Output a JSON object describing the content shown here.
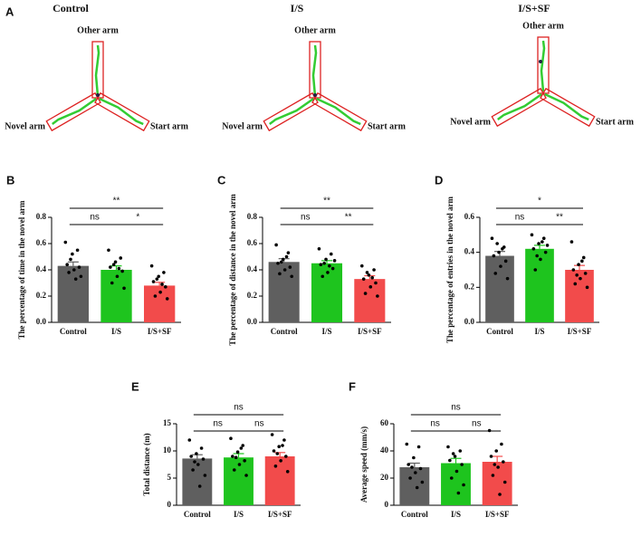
{
  "panel_a": {
    "label": "A",
    "mazes": [
      {
        "title": "Control",
        "other": "Other arm",
        "novel": "Novel arm",
        "start": "Start arm"
      },
      {
        "title": "I/S",
        "other": "Other arm",
        "novel": "Novel arm",
        "start": "Start arm"
      },
      {
        "title": "I/S+SF",
        "other": "Other arm",
        "novel": "Novel arm",
        "start": "Start arm"
      }
    ]
  },
  "chart_data": [
    {
      "type": "bar",
      "panel": "B",
      "y_label": "The percentage of time in the novel arm",
      "categories": [
        "Control",
        "I/S",
        "I/S+SF"
      ],
      "colors": [
        "#5f5f5f",
        "#1ec41e",
        "#f24b4b"
      ],
      "values": [
        0.43,
        0.4,
        0.28
      ],
      "errors": [
        0.03,
        0.03,
        0.025
      ],
      "points": [
        [
          0.61,
          0.55,
          0.52,
          0.44,
          0.42,
          0.4,
          0.38,
          0.35,
          0.33,
          0.48
        ],
        [
          0.55,
          0.49,
          0.46,
          0.42,
          0.39,
          0.35,
          0.3,
          0.26,
          0.41,
          0.44
        ],
        [
          0.43,
          0.38,
          0.35,
          0.31,
          0.27,
          0.23,
          0.2,
          0.18,
          0.29,
          0.33
        ]
      ],
      "ylim": [
        0,
        0.8
      ],
      "yticks": [
        {
          "value": 0,
          "label": "0.0"
        },
        0.2,
        0.4,
        0.6,
        0.8
      ],
      "annotations": [
        {
          "text": "**",
          "between": [
            "Control",
            "I/S+SF"
          ]
        },
        {
          "text": "ns",
          "between": [
            "Control",
            "I/S"
          ]
        },
        {
          "text": "*",
          "between": [
            "I/S",
            "I/S+SF"
          ]
        }
      ]
    },
    {
      "type": "bar",
      "panel": "C",
      "y_label": "The percentage of distance in the novel arm",
      "categories": [
        "Control",
        "I/S",
        "I/S+SF"
      ],
      "colors": [
        "#5f5f5f",
        "#1ec41e",
        "#f24b4b"
      ],
      "values": [
        0.46,
        0.45,
        0.33
      ],
      "errors": [
        0.025,
        0.02,
        0.025
      ],
      "points": [
        [
          0.59,
          0.53,
          0.48,
          0.45,
          0.42,
          0.4,
          0.37,
          0.35,
          0.5,
          0.46
        ],
        [
          0.56,
          0.52,
          0.48,
          0.44,
          0.41,
          0.38,
          0.35,
          0.47,
          0.43,
          0.45
        ],
        [
          0.43,
          0.4,
          0.36,
          0.33,
          0.3,
          0.27,
          0.22,
          0.2,
          0.34,
          0.38
        ]
      ],
      "ylim": [
        0,
        0.8
      ],
      "yticks": [
        {
          "value": 0,
          "label": "0.0"
        },
        0.2,
        0.4,
        0.6,
        0.8
      ],
      "annotations": [
        {
          "text": "**",
          "between": [
            "Control",
            "I/S+SF"
          ]
        },
        {
          "text": "ns",
          "between": [
            "Control",
            "I/S"
          ]
        },
        {
          "text": "**",
          "between": [
            "I/S",
            "I/S+SF"
          ]
        }
      ]
    },
    {
      "type": "bar",
      "panel": "D",
      "y_label": "The percentage of entries in the novel arm",
      "categories": [
        "Control",
        "I/S",
        "I/S+SF"
      ],
      "colors": [
        "#5f5f5f",
        "#1ec41e",
        "#f24b4b"
      ],
      "values": [
        0.38,
        0.42,
        0.3
      ],
      "errors": [
        0.025,
        0.02,
        0.025
      ],
      "points": [
        [
          0.48,
          0.43,
          0.4,
          0.38,
          0.35,
          0.32,
          0.28,
          0.25,
          0.42,
          0.45
        ],
        [
          0.5,
          0.48,
          0.45,
          0.42,
          0.4,
          0.36,
          0.3,
          0.44,
          0.46,
          0.38
        ],
        [
          0.46,
          0.37,
          0.33,
          0.3,
          0.28,
          0.25,
          0.22,
          0.2,
          0.35,
          0.27
        ]
      ],
      "ylim": [
        0,
        0.6
      ],
      "yticks": [
        {
          "value": 0,
          "label": "0.0"
        },
        0.2,
        0.4,
        0.6
      ],
      "annotations": [
        {
          "text": "*",
          "between": [
            "Control",
            "I/S+SF"
          ]
        },
        {
          "text": "ns",
          "between": [
            "Control",
            "I/S"
          ]
        },
        {
          "text": "**",
          "between": [
            "I/S",
            "I/S+SF"
          ]
        }
      ]
    },
    {
      "type": "bar",
      "panel": "E",
      "y_label": "Total distance (m)",
      "categories": [
        "Control",
        "I/S",
        "I/S+SF"
      ],
      "colors": [
        "#5f5f5f",
        "#1ec41e",
        "#f24b4b"
      ],
      "values": [
        8.6,
        8.8,
        9.0
      ],
      "errors": [
        0.7,
        0.7,
        0.7
      ],
      "points": [
        [
          12,
          10.5,
          9.5,
          9,
          8.5,
          7.5,
          6.5,
          5.5,
          3.5,
          8
        ],
        [
          12.3,
          11,
          9.8,
          9,
          8.2,
          7.5,
          6.5,
          5.5,
          10.5,
          8.8
        ],
        [
          13,
          12,
          10.8,
          10,
          9,
          8.2,
          7.2,
          6.2,
          11,
          9.5
        ]
      ],
      "ylim": [
        0,
        15
      ],
      "yticks": [
        0,
        5,
        10,
        15
      ],
      "annotations": [
        {
          "text": "ns",
          "between": [
            "Control",
            "I/S+SF"
          ]
        },
        {
          "text": "ns",
          "between": [
            "Control",
            "I/S"
          ]
        },
        {
          "text": "ns",
          "between": [
            "I/S",
            "I/S+SF"
          ]
        }
      ]
    },
    {
      "type": "bar",
      "panel": "F",
      "y_label": "Average speed (mm/s)",
      "categories": [
        "Control",
        "I/S",
        "I/S+SF"
      ],
      "colors": [
        "#5f5f5f",
        "#1ec41e",
        "#f24b4b"
      ],
      "values": [
        28,
        31,
        32
      ],
      "errors": [
        3,
        3.5,
        4
      ],
      "points": [
        [
          45,
          43,
          35,
          30,
          27,
          24,
          20,
          17,
          13,
          28
        ],
        [
          43,
          40,
          36,
          33,
          30,
          25,
          20,
          15,
          9,
          38
        ],
        [
          55,
          45,
          40,
          36,
          32,
          28,
          22,
          17,
          8,
          30
        ]
      ],
      "ylim": [
        0,
        60
      ],
      "yticks": [
        0,
        20,
        40,
        60
      ],
      "annotations": [
        {
          "text": "ns",
          "between": [
            "Control",
            "I/S+SF"
          ]
        },
        {
          "text": "ns",
          "between": [
            "Control",
            "I/S"
          ]
        },
        {
          "text": "ns",
          "between": [
            "I/S",
            "I/S+SF"
          ]
        }
      ]
    }
  ]
}
